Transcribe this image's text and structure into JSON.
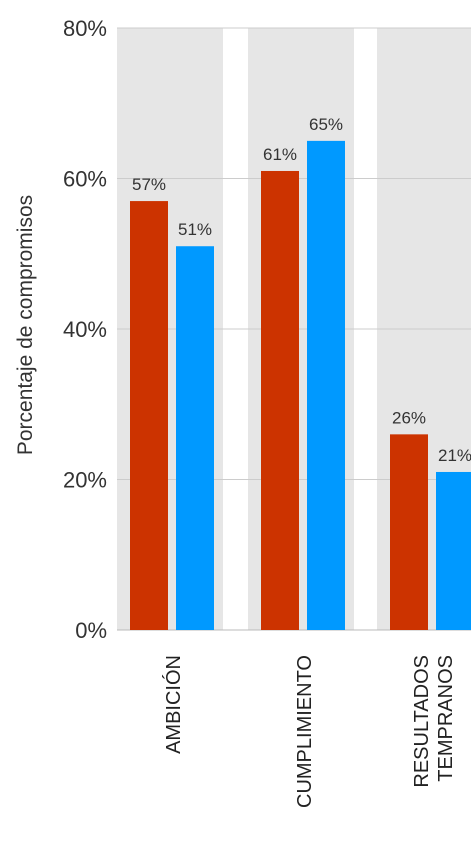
{
  "chart_data": {
    "type": "bar",
    "title": "",
    "xlabel": "",
    "ylabel": "Porcentaje de compromisos",
    "ylim": [
      0,
      80
    ],
    "yticks": [
      0,
      20,
      40,
      60,
      80
    ],
    "ytick_labels": [
      "0%",
      "20%",
      "40%",
      "60%",
      "80%"
    ],
    "categories": [
      [
        "AMBICIÓN"
      ],
      [
        "CUMPLIMIENTO"
      ],
      [
        "RESULTADOS",
        "TEMPRANOS"
      ]
    ],
    "series": [
      {
        "color": "#cc3300",
        "values": [
          57,
          61,
          26
        ],
        "labels": [
          "57%",
          "61%",
          "26%"
        ]
      },
      {
        "color": "#0099ff",
        "values": [
          51,
          65,
          21
        ],
        "labels": [
          "51%",
          "65%",
          "21%"
        ]
      }
    ],
    "grid": true,
    "legend": "none",
    "panel_color": "#e6e6e6"
  }
}
